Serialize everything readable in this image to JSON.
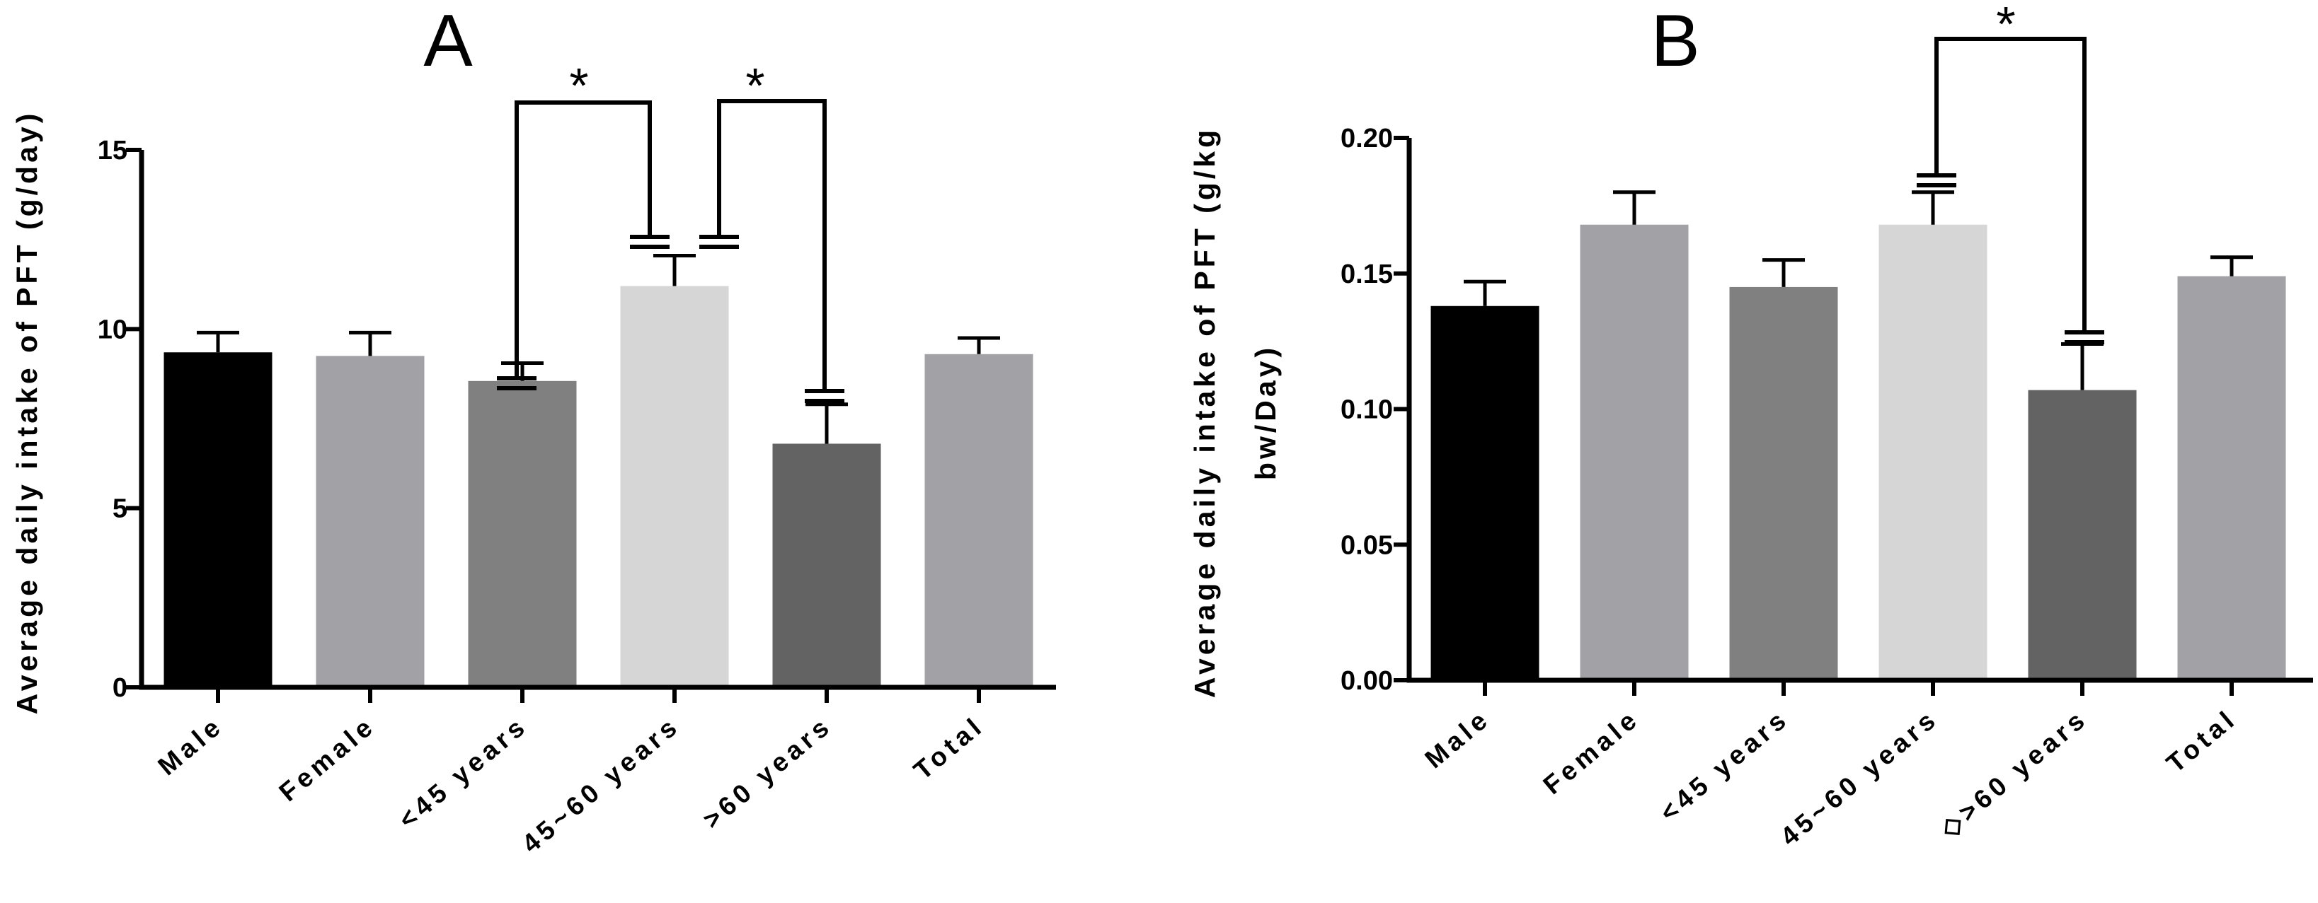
{
  "chart_data": [
    {
      "type": "bar",
      "panel": "A",
      "ylabel": "Average daily intake of PFT (g/day)",
      "ylim": [
        0,
        15
      ],
      "yticks": [
        0,
        5,
        10,
        15
      ],
      "ytick_labels": [
        "0",
        "5",
        "10",
        "15"
      ],
      "categories": [
        "Male",
        "Female",
        "<45 years",
        "45~60 years",
        ">60 years",
        "Total"
      ],
      "values": [
        9.35,
        9.25,
        8.55,
        11.2,
        6.8,
        9.3
      ],
      "errors": [
        0.55,
        0.65,
        0.5,
        0.85,
        1.1,
        0.45
      ],
      "bar_colors": [
        "#000000",
        "#a2a1a6",
        "#808080",
        "#d6d6d6",
        "#636363",
        "#a2a1a6"
      ],
      "significance": [
        {
          "from": 2,
          "to": 3,
          "label": "*"
        },
        {
          "from": 3,
          "to": 4,
          "label": "*"
        }
      ]
    },
    {
      "type": "bar",
      "panel": "B",
      "ylabel_lines": [
        "Average daily intake of PFT (g/kg",
        "bw/Day)"
      ],
      "ylim": [
        0,
        0.2
      ],
      "yticks": [
        0,
        0.05,
        0.1,
        0.15,
        0.2
      ],
      "ytick_labels": [
        "0.00",
        "0.05",
        "0.10",
        "0.15",
        "0.20"
      ],
      "categories": [
        "Male",
        "Female",
        "<45 years",
        "45~60 years",
        "◇>60 years",
        "Total"
      ],
      "values": [
        0.138,
        0.168,
        0.145,
        0.168,
        0.107,
        0.149
      ],
      "errors": [
        0.009,
        0.012,
        0.01,
        0.012,
        0.017,
        0.007
      ],
      "bar_colors": [
        "#000000",
        "#a2a1a6",
        "#808080",
        "#d6d6d6",
        "#636363",
        "#a2a1a6"
      ],
      "significance": [
        {
          "from": 3,
          "to": 4,
          "label": "*"
        }
      ]
    }
  ]
}
